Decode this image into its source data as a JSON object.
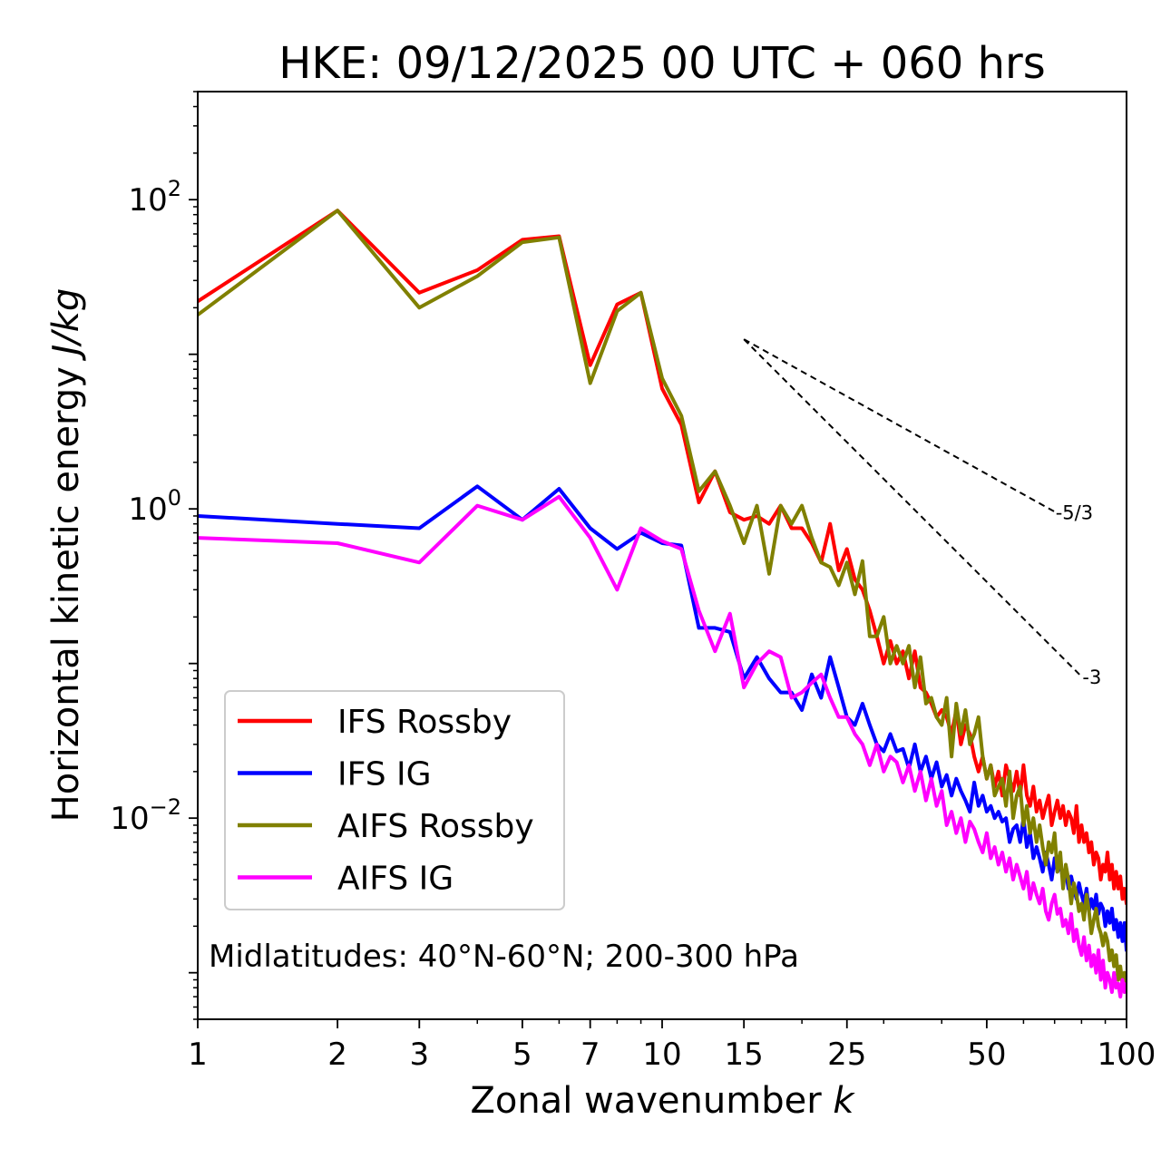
{
  "chart_data": {
    "type": "line",
    "title": "HKE: 09/12/2025 00 UTC + 060 hrs",
    "xlabel": "Zonal wavenumber",
    "xlabel_var": "k",
    "ylabel": "Horizontal kinetic energy",
    "ylabel_units": "J/kg",
    "xscale": "log",
    "yscale": "log",
    "xlim": [
      1,
      100
    ],
    "ylim": [
      0.0005,
      500
    ],
    "x_ticks": [
      1,
      2,
      3,
      5,
      7,
      10,
      15,
      25,
      50,
      100
    ],
    "y_ticks": [
      {
        "base": "10",
        "exp": "−2",
        "value": 0.01
      },
      {
        "base": "10",
        "exp": "0",
        "value": 1
      },
      {
        "base": "10",
        "exp": "2",
        "value": 100
      }
    ],
    "annotation": "Midlatitudes: 40°N-60°N; 200-300 hPa",
    "legend_position": "lower-left",
    "reference_lines": [
      {
        "label": "-5/3",
        "slope": -1.6667,
        "x0": 15,
        "y0": 12.5,
        "x1": 70
      },
      {
        "label": "-3",
        "slope": -3,
        "x0": 15,
        "y0": 12.5,
        "x1": 80
      }
    ],
    "series": [
      {
        "name": "IFS Rossby",
        "color": "#ff0000",
        "x": [
          1,
          2,
          3,
          4,
          5,
          6,
          7,
          8,
          9,
          10,
          11,
          12,
          13,
          14,
          15,
          16,
          17,
          18,
          19,
          20,
          21,
          22,
          23,
          24,
          25,
          26,
          27,
          28,
          29,
          30,
          31,
          32,
          33,
          34,
          35,
          36,
          37,
          38,
          39,
          40,
          41,
          42,
          43,
          44,
          45,
          46,
          47,
          48,
          49,
          50,
          51,
          52,
          53,
          54,
          55,
          56,
          57,
          58,
          59,
          60,
          61,
          62,
          63,
          64,
          65,
          66,
          67,
          68,
          69,
          70,
          71,
          72,
          73,
          74,
          75,
          76,
          77,
          78,
          79,
          80,
          81,
          82,
          83,
          84,
          85,
          86,
          87,
          88,
          89,
          90,
          91,
          92,
          93,
          94,
          95,
          96,
          97,
          98,
          99,
          100
        ],
        "y": [
          22,
          85,
          25,
          35,
          55,
          58,
          8.5,
          21,
          25,
          6,
          3.5,
          1.1,
          1.75,
          0.95,
          0.85,
          0.9,
          0.8,
          1.05,
          0.75,
          0.75,
          0.6,
          0.45,
          0.8,
          0.4,
          0.55,
          0.35,
          0.3,
          0.22,
          0.15,
          0.1,
          0.14,
          0.1,
          0.12,
          0.08,
          0.12,
          0.07,
          0.065,
          0.055,
          0.045,
          0.05,
          0.045,
          0.035,
          0.05,
          0.03,
          0.04,
          0.035,
          0.025,
          0.02,
          0.025,
          0.018,
          0.022,
          0.016,
          0.02,
          0.014,
          0.022,
          0.018,
          0.015,
          0.02,
          0.014,
          0.022,
          0.014,
          0.012,
          0.016,
          0.011,
          0.013,
          0.01,
          0.012,
          0.014,
          0.009,
          0.011,
          0.013,
          0.01,
          0.012,
          0.009,
          0.011,
          0.01,
          0.008,
          0.012,
          0.007,
          0.009,
          0.007,
          0.008,
          0.006,
          0.007,
          0.005,
          0.006,
          0.0055,
          0.004,
          0.005,
          0.0045,
          0.006,
          0.004,
          0.005,
          0.0035,
          0.0045,
          0.0035,
          0.0042,
          0.003,
          0.0035,
          0.0028
        ]
      },
      {
        "name": "IFS IG",
        "color": "#0000ff",
        "x": [
          1,
          2,
          3,
          4,
          5,
          6,
          7,
          8,
          9,
          10,
          11,
          12,
          13,
          14,
          15,
          16,
          17,
          18,
          19,
          20,
          21,
          22,
          23,
          24,
          25,
          26,
          27,
          28,
          29,
          30,
          31,
          32,
          33,
          34,
          35,
          36,
          37,
          38,
          39,
          40,
          41,
          42,
          43,
          44,
          45,
          46,
          47,
          48,
          49,
          50,
          51,
          52,
          53,
          54,
          55,
          56,
          57,
          58,
          59,
          60,
          61,
          62,
          63,
          64,
          65,
          66,
          67,
          68,
          69,
          70,
          71,
          72,
          73,
          74,
          75,
          76,
          77,
          78,
          79,
          80,
          81,
          82,
          83,
          84,
          85,
          86,
          87,
          88,
          89,
          90,
          91,
          92,
          93,
          94,
          95,
          96,
          97,
          98,
          99,
          100
        ],
        "y": [
          0.9,
          0.8,
          0.75,
          1.4,
          0.85,
          1.35,
          0.75,
          0.55,
          0.7,
          0.6,
          0.58,
          0.17,
          0.17,
          0.16,
          0.08,
          0.11,
          0.08,
          0.065,
          0.065,
          0.05,
          0.085,
          0.06,
          0.11,
          0.07,
          0.045,
          0.04,
          0.055,
          0.04,
          0.03,
          0.027,
          0.035,
          0.027,
          0.028,
          0.021,
          0.03,
          0.02,
          0.025,
          0.018,
          0.023,
          0.016,
          0.019,
          0.014,
          0.018,
          0.015,
          0.013,
          0.011,
          0.017,
          0.012,
          0.014,
          0.011,
          0.012,
          0.01,
          0.011,
          0.0095,
          0.01,
          0.007,
          0.0085,
          0.009,
          0.007,
          0.01,
          0.0065,
          0.008,
          0.0055,
          0.0065,
          0.0055,
          0.0045,
          0.006,
          0.005,
          0.004,
          0.0055,
          0.0045,
          0.005,
          0.004,
          0.0045,
          0.0035,
          0.0042,
          0.0035,
          0.003,
          0.0038,
          0.0032,
          0.0028,
          0.0035,
          0.0025,
          0.003,
          0.0026,
          0.0032,
          0.0024,
          0.0028,
          0.0026,
          0.002,
          0.0025,
          0.0021,
          0.0026,
          0.0019,
          0.0022,
          0.0017,
          0.0021,
          0.0016,
          0.0021,
          0.0014
        ]
      },
      {
        "name": "AIFS Rossby",
        "color": "#808000",
        "x": [
          1,
          2,
          3,
          4,
          5,
          6,
          7,
          8,
          9,
          10,
          11,
          12,
          13,
          14,
          15,
          16,
          17,
          18,
          19,
          20,
          21,
          22,
          23,
          24,
          25,
          26,
          27,
          28,
          29,
          30,
          31,
          32,
          33,
          34,
          35,
          36,
          37,
          38,
          39,
          40,
          41,
          42,
          43,
          44,
          45,
          46,
          47,
          48,
          49,
          50,
          51,
          52,
          53,
          54,
          55,
          56,
          57,
          58,
          59,
          60,
          61,
          62,
          63,
          64,
          65,
          66,
          67,
          68,
          69,
          70,
          71,
          72,
          73,
          74,
          75,
          76,
          77,
          78,
          79,
          80,
          81,
          82,
          83,
          84,
          85,
          86,
          87,
          88,
          89,
          90,
          91,
          92,
          93,
          94,
          95,
          96,
          97,
          98,
          99,
          100
        ],
        "y": [
          18,
          85,
          20,
          32,
          53,
          57,
          6.5,
          19,
          25,
          7,
          4,
          1.3,
          1.75,
          1.05,
          0.6,
          1.05,
          0.38,
          1.05,
          0.8,
          1.05,
          0.65,
          0.45,
          0.42,
          0.32,
          0.45,
          0.28,
          0.46,
          0.15,
          0.15,
          0.2,
          0.1,
          0.13,
          0.1,
          0.13,
          0.07,
          0.11,
          0.055,
          0.06,
          0.045,
          0.04,
          0.06,
          0.025,
          0.055,
          0.035,
          0.05,
          0.03,
          0.035,
          0.045,
          0.025,
          0.018,
          0.022,
          0.014,
          0.016,
          0.018,
          0.012,
          0.02,
          0.01,
          0.014,
          0.016,
          0.009,
          0.012,
          0.008,
          0.01,
          0.007,
          0.009,
          0.0065,
          0.005,
          0.007,
          0.006,
          0.008,
          0.0045,
          0.006,
          0.0035,
          0.005,
          0.004,
          0.0028,
          0.0038,
          0.0032,
          0.0025,
          0.0028,
          0.0022,
          0.0032,
          0.0025,
          0.0018,
          0.0022,
          0.0026,
          0.002,
          0.0018,
          0.0015,
          0.0018,
          0.0016,
          0.0012,
          0.0014,
          0.0011,
          0.0013,
          0.0009,
          0.0011,
          0.00085,
          0.001,
          0.0008
        ]
      },
      {
        "name": "AIFS IG",
        "color": "#ff00ff",
        "x": [
          1,
          2,
          3,
          4,
          5,
          6,
          7,
          8,
          9,
          10,
          11,
          12,
          13,
          14,
          15,
          16,
          17,
          18,
          19,
          20,
          21,
          22,
          23,
          24,
          25,
          26,
          27,
          28,
          29,
          30,
          31,
          32,
          33,
          34,
          35,
          36,
          37,
          38,
          39,
          40,
          41,
          42,
          43,
          44,
          45,
          46,
          47,
          48,
          49,
          50,
          51,
          52,
          53,
          54,
          55,
          56,
          57,
          58,
          59,
          60,
          61,
          62,
          63,
          64,
          65,
          66,
          67,
          68,
          69,
          70,
          71,
          72,
          73,
          74,
          75,
          76,
          77,
          78,
          79,
          80,
          81,
          82,
          83,
          84,
          85,
          86,
          87,
          88,
          89,
          90,
          91,
          92,
          93,
          94,
          95,
          96,
          97,
          98,
          99,
          100
        ],
        "y": [
          0.65,
          0.6,
          0.45,
          1.05,
          0.85,
          1.2,
          0.65,
          0.3,
          0.75,
          0.62,
          0.55,
          0.22,
          0.12,
          0.21,
          0.07,
          0.1,
          0.12,
          0.11,
          0.06,
          0.065,
          0.075,
          0.085,
          0.06,
          0.045,
          0.045,
          0.035,
          0.03,
          0.022,
          0.03,
          0.02,
          0.025,
          0.023,
          0.017,
          0.022,
          0.015,
          0.02,
          0.013,
          0.018,
          0.012,
          0.015,
          0.009,
          0.011,
          0.008,
          0.01,
          0.007,
          0.0095,
          0.0085,
          0.007,
          0.006,
          0.008,
          0.0055,
          0.0065,
          0.005,
          0.006,
          0.0045,
          0.0055,
          0.004,
          0.005,
          0.0042,
          0.0035,
          0.0045,
          0.003,
          0.0038,
          0.0032,
          0.0028,
          0.0035,
          0.0025,
          0.0022,
          0.0028,
          0.0032,
          0.0024,
          0.0026,
          0.002,
          0.0022,
          0.0018,
          0.0024,
          0.0016,
          0.0019,
          0.0015,
          0.0013,
          0.0017,
          0.0012,
          0.0015,
          0.0011,
          0.0013,
          0.001,
          0.0014,
          0.0009,
          0.0012,
          0.0008,
          0.001,
          0.0009,
          0.00075,
          0.001,
          0.0008,
          0.00085,
          0.0007,
          0.0009,
          0.00075,
          0.00085
        ]
      }
    ]
  }
}
